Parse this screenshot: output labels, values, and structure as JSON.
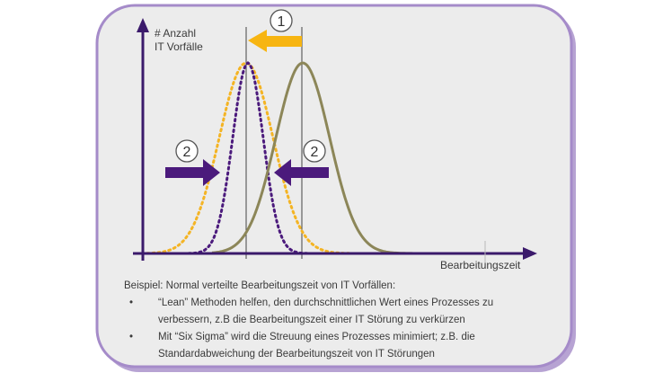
{
  "diagram": {
    "ylabel_line1": "# Anzahl",
    "ylabel_line2": "IT Vorfälle",
    "xlabel": "Bearbeitungszeit",
    "marker1": "1",
    "marker2_left": "2",
    "marker2_right": "2",
    "colors": {
      "frame_border": "#a58bc9",
      "frame_fill": "#ececec",
      "axis": "#3b1a6b",
      "orange_curve": "#f4b424",
      "purple_curve": "#4b1a7c",
      "olive_curve": "#8c8658",
      "arrow_orange": "#f7b512",
      "arrow_purple": "#4b1a7c"
    }
  },
  "caption": {
    "intro": "Beispiel: Normal verteilte Bearbeitungszeit von IT Vorfällen:",
    "bullets": [
      {
        "marker": "•",
        "line1": "“Lean” Methoden helfen, den durchschnittlichen Wert eines Prozesses zu",
        "line2": "verbessern, z.B die Bearbeitungszeit einer IT Störung zu verkürzen"
      },
      {
        "marker": "•",
        "line1": "Mit “Six Sigma” wird die Streuung eines Prozesses minimiert; z.B. die",
        "line2": "Standardabweichung der Bearbeitungszeit von IT Störungen"
      }
    ]
  }
}
